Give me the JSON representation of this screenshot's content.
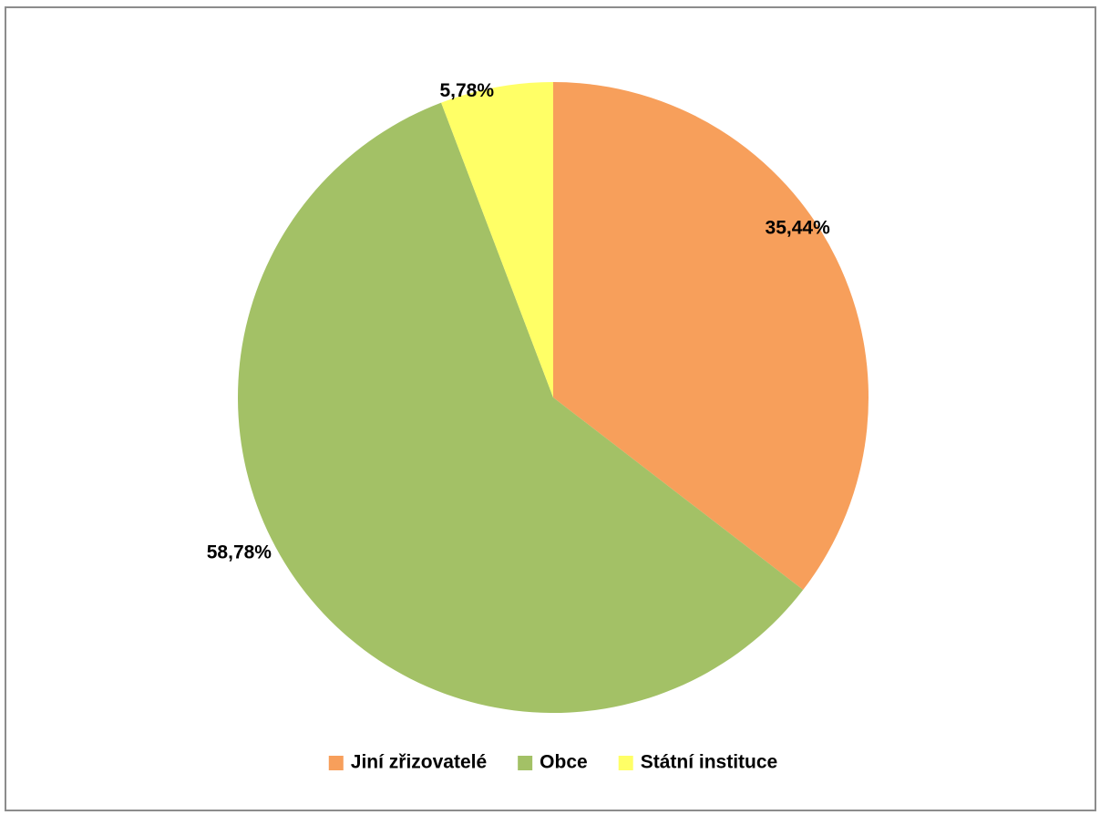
{
  "chart_data": {
    "type": "pie",
    "title": "",
    "start_angle_deg": 0,
    "direction": "clockwise",
    "legend_position": "bottom",
    "slices": [
      {
        "name": "Jiní zřizovatelé",
        "value": 35.44,
        "label": "35,44%",
        "color": "#F79F5B"
      },
      {
        "name": "Obce",
        "value": 58.78,
        "label": "58,78%",
        "color": "#A3C166"
      },
      {
        "name": "Státní instituce",
        "value": 5.78,
        "label": "5,78%",
        "color": "#FFFF66"
      }
    ]
  }
}
